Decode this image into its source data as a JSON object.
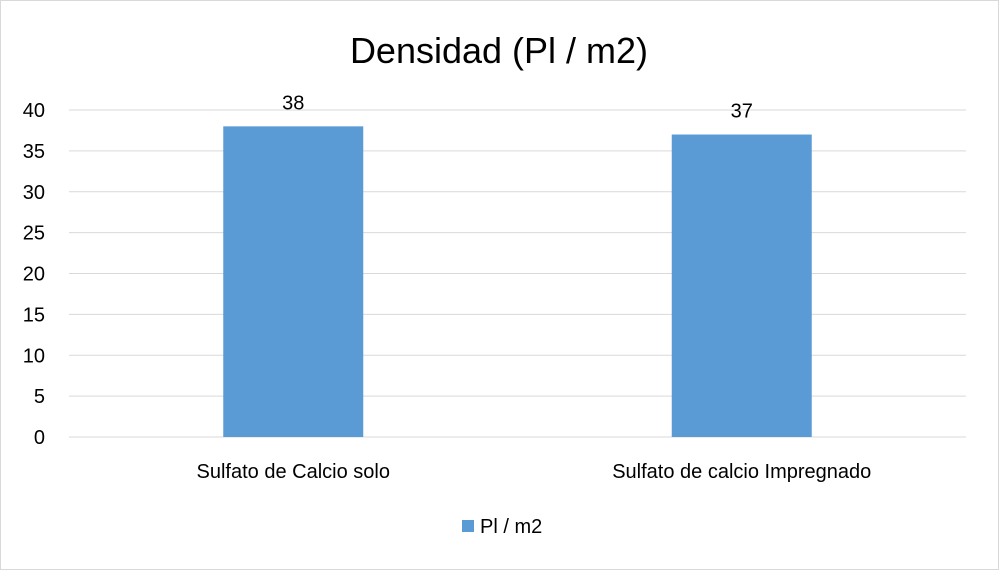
{
  "chart_data": {
    "type": "bar",
    "title": "Densidad (Pl / m2)",
    "categories": [
      "Sulfato de Calcio solo",
      "Sulfato de calcio Impregnado"
    ],
    "series": [
      {
        "name": "Pl / m2",
        "values": [
          38,
          37
        ],
        "color": "#5b9bd5"
      }
    ],
    "data_labels": [
      "38",
      "37"
    ],
    "xlabel": "",
    "ylabel": "",
    "ylim": [
      0,
      40
    ],
    "yticks": [
      0,
      5,
      10,
      15,
      20,
      25,
      30,
      35,
      40
    ],
    "grid": true,
    "legend": "bottom",
    "gridline_color": "#d9d9d9"
  }
}
